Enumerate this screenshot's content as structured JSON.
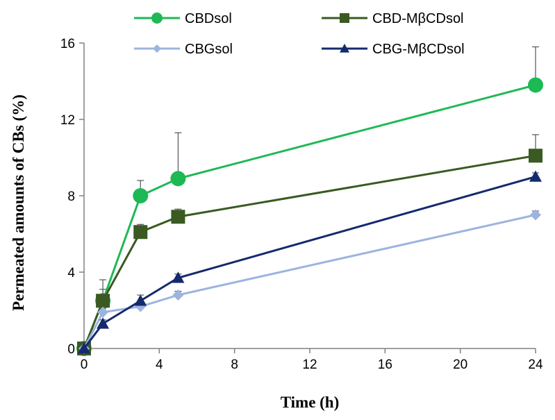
{
  "chart_data": {
    "type": "line",
    "xlabel": "Time (h)",
    "ylabel": "Permeated amounts of CBs (%)",
    "xlim": [
      0,
      24
    ],
    "ylim": [
      0,
      16
    ],
    "xticks": [
      0,
      4,
      8,
      12,
      16,
      20,
      24
    ],
    "yticks": [
      0,
      4,
      8,
      12,
      16
    ],
    "grid": false,
    "legend_position": "top",
    "series": [
      {
        "name": "CBDsol",
        "color": "#1db954",
        "marker": "circle",
        "x": [
          0,
          1,
          3,
          5,
          24
        ],
        "y": [
          0,
          2.5,
          8.0,
          8.9,
          13.8
        ],
        "error": [
          0,
          1.1,
          0.8,
          2.4,
          2.0
        ]
      },
      {
        "name": "CBD-MβCDsol",
        "color": "#3a5a21",
        "marker": "square",
        "x": [
          0,
          1,
          3,
          5,
          24
        ],
        "y": [
          0,
          2.5,
          6.1,
          6.9,
          10.1
        ],
        "error": [
          0,
          0.6,
          0.4,
          0.4,
          1.1
        ]
      },
      {
        "name": "CBGsol",
        "color": "#9db4e0",
        "marker": "diamond",
        "x": [
          0,
          1,
          3,
          5,
          24
        ],
        "y": [
          0,
          1.9,
          2.2,
          2.8,
          7.0
        ],
        "error": [
          0,
          0.2,
          0.2,
          0.2,
          0.2
        ]
      },
      {
        "name": "CBG-MβCDsol",
        "color": "#142a6e",
        "marker": "triangle",
        "x": [
          0,
          1,
          3,
          5,
          24
        ],
        "y": [
          0,
          1.3,
          2.5,
          3.7,
          9.0
        ],
        "error": [
          0,
          0.2,
          0.3,
          0.2,
          0.2
        ]
      }
    ]
  }
}
